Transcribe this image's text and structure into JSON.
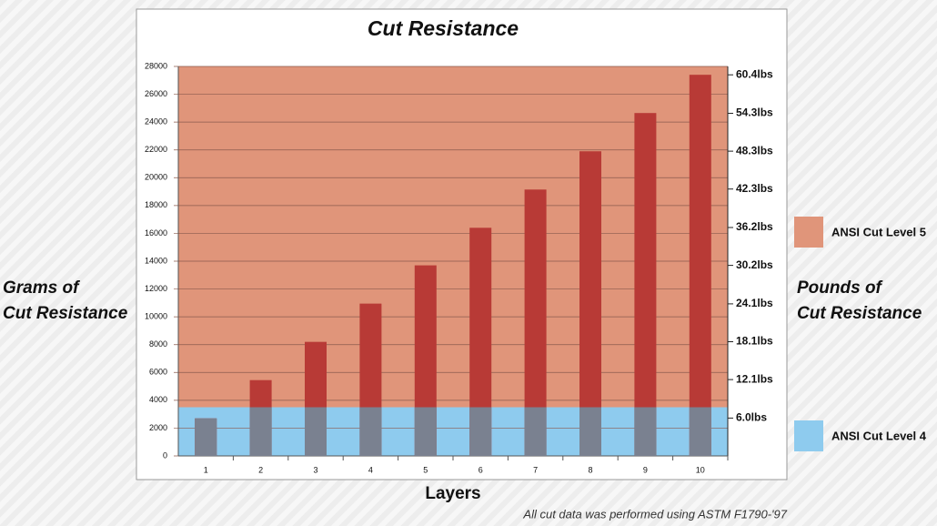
{
  "chart_data": {
    "type": "bar",
    "title": "Cut Resistance",
    "x_label": "Layers",
    "y_label": [
      "Grams of",
      "Cut Resistance"
    ],
    "y2_label": [
      "Pounds of",
      "Cut Resistance"
    ],
    "note": "All cut data was performed using ASTM F1790-'97",
    "categories": [
      "1",
      "2",
      "3",
      "4",
      "5",
      "6",
      "7",
      "8",
      "9",
      "10"
    ],
    "values": [
      2700,
      5450,
      8200,
      10950,
      13700,
      16400,
      19150,
      21900,
      24650,
      27400
    ],
    "color": "#b83a36",
    "band_color_low": "#7a8190",
    "ylim": [
      0,
      28000
    ],
    "yticks": [
      0,
      2000,
      4000,
      6000,
      8000,
      10000,
      12000,
      14000,
      16000,
      18000,
      20000,
      22000,
      24000,
      26000,
      28000
    ],
    "y2lim": [
      0,
      61.73
    ],
    "y2ticks": [
      {
        "value": 6.0,
        "label": "6.0lbs"
      },
      {
        "value": 12.1,
        "label": "12.1lbs"
      },
      {
        "value": 18.1,
        "label": "18.1lbs"
      },
      {
        "value": 24.1,
        "label": "24.1lbs"
      },
      {
        "value": 30.2,
        "label": "30.2lbs"
      },
      {
        "value": 36.2,
        "label": "36.2lbs"
      },
      {
        "value": 42.3,
        "label": "42.3lbs"
      },
      {
        "value": 48.3,
        "label": "48.3lbs"
      },
      {
        "value": 54.3,
        "label": "54.3lbs"
      },
      {
        "value": 60.4,
        "label": "60.4lbs"
      }
    ],
    "bands": [
      {
        "name": "ANSI Cut Level 5",
        "color": "#e0957a",
        "from": 3500,
        "to": 28000
      },
      {
        "name": "ANSI Cut Level 4",
        "color": "#8ecbee",
        "from": 0,
        "to": 3500
      }
    ],
    "grid": true
  }
}
